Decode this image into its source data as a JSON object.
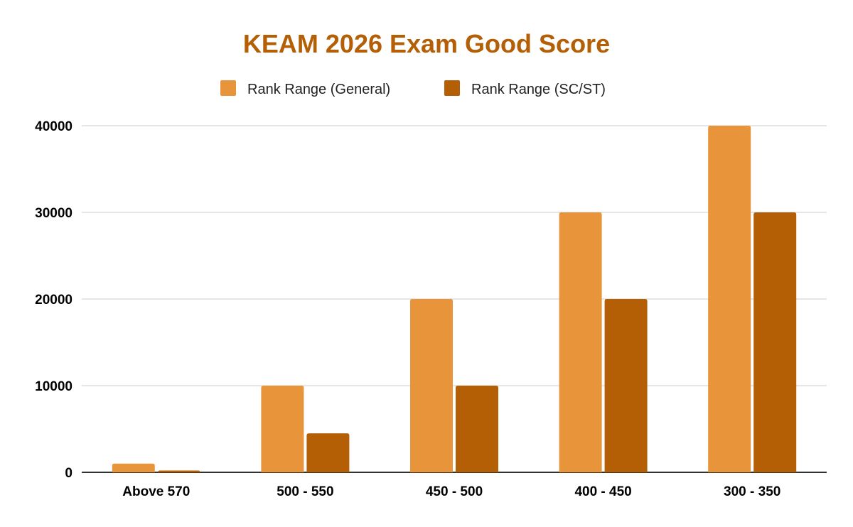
{
  "chart_data": {
    "type": "bar",
    "title": "KEAM 2026 Exam Good Score",
    "xlabel": "",
    "ylabel": "",
    "categories": [
      "Above 570",
      "500 - 550",
      "450 - 500",
      "400 - 450",
      "300 - 350"
    ],
    "series": [
      {
        "name": "Rank Range (General)",
        "color": "#E8943A",
        "values": [
          1000,
          10000,
          20000,
          30000,
          40000
        ]
      },
      {
        "name": "Rank Range (SC/ST)",
        "color": "#B45F06",
        "values": [
          200,
          4500,
          10000,
          20000,
          30000
        ]
      }
    ],
    "ylim": [
      0,
      40000
    ],
    "yticks": [
      0,
      10000,
      20000,
      30000,
      40000
    ],
    "grid": true,
    "legend": "top-center",
    "title_color": "#B45F06"
  }
}
